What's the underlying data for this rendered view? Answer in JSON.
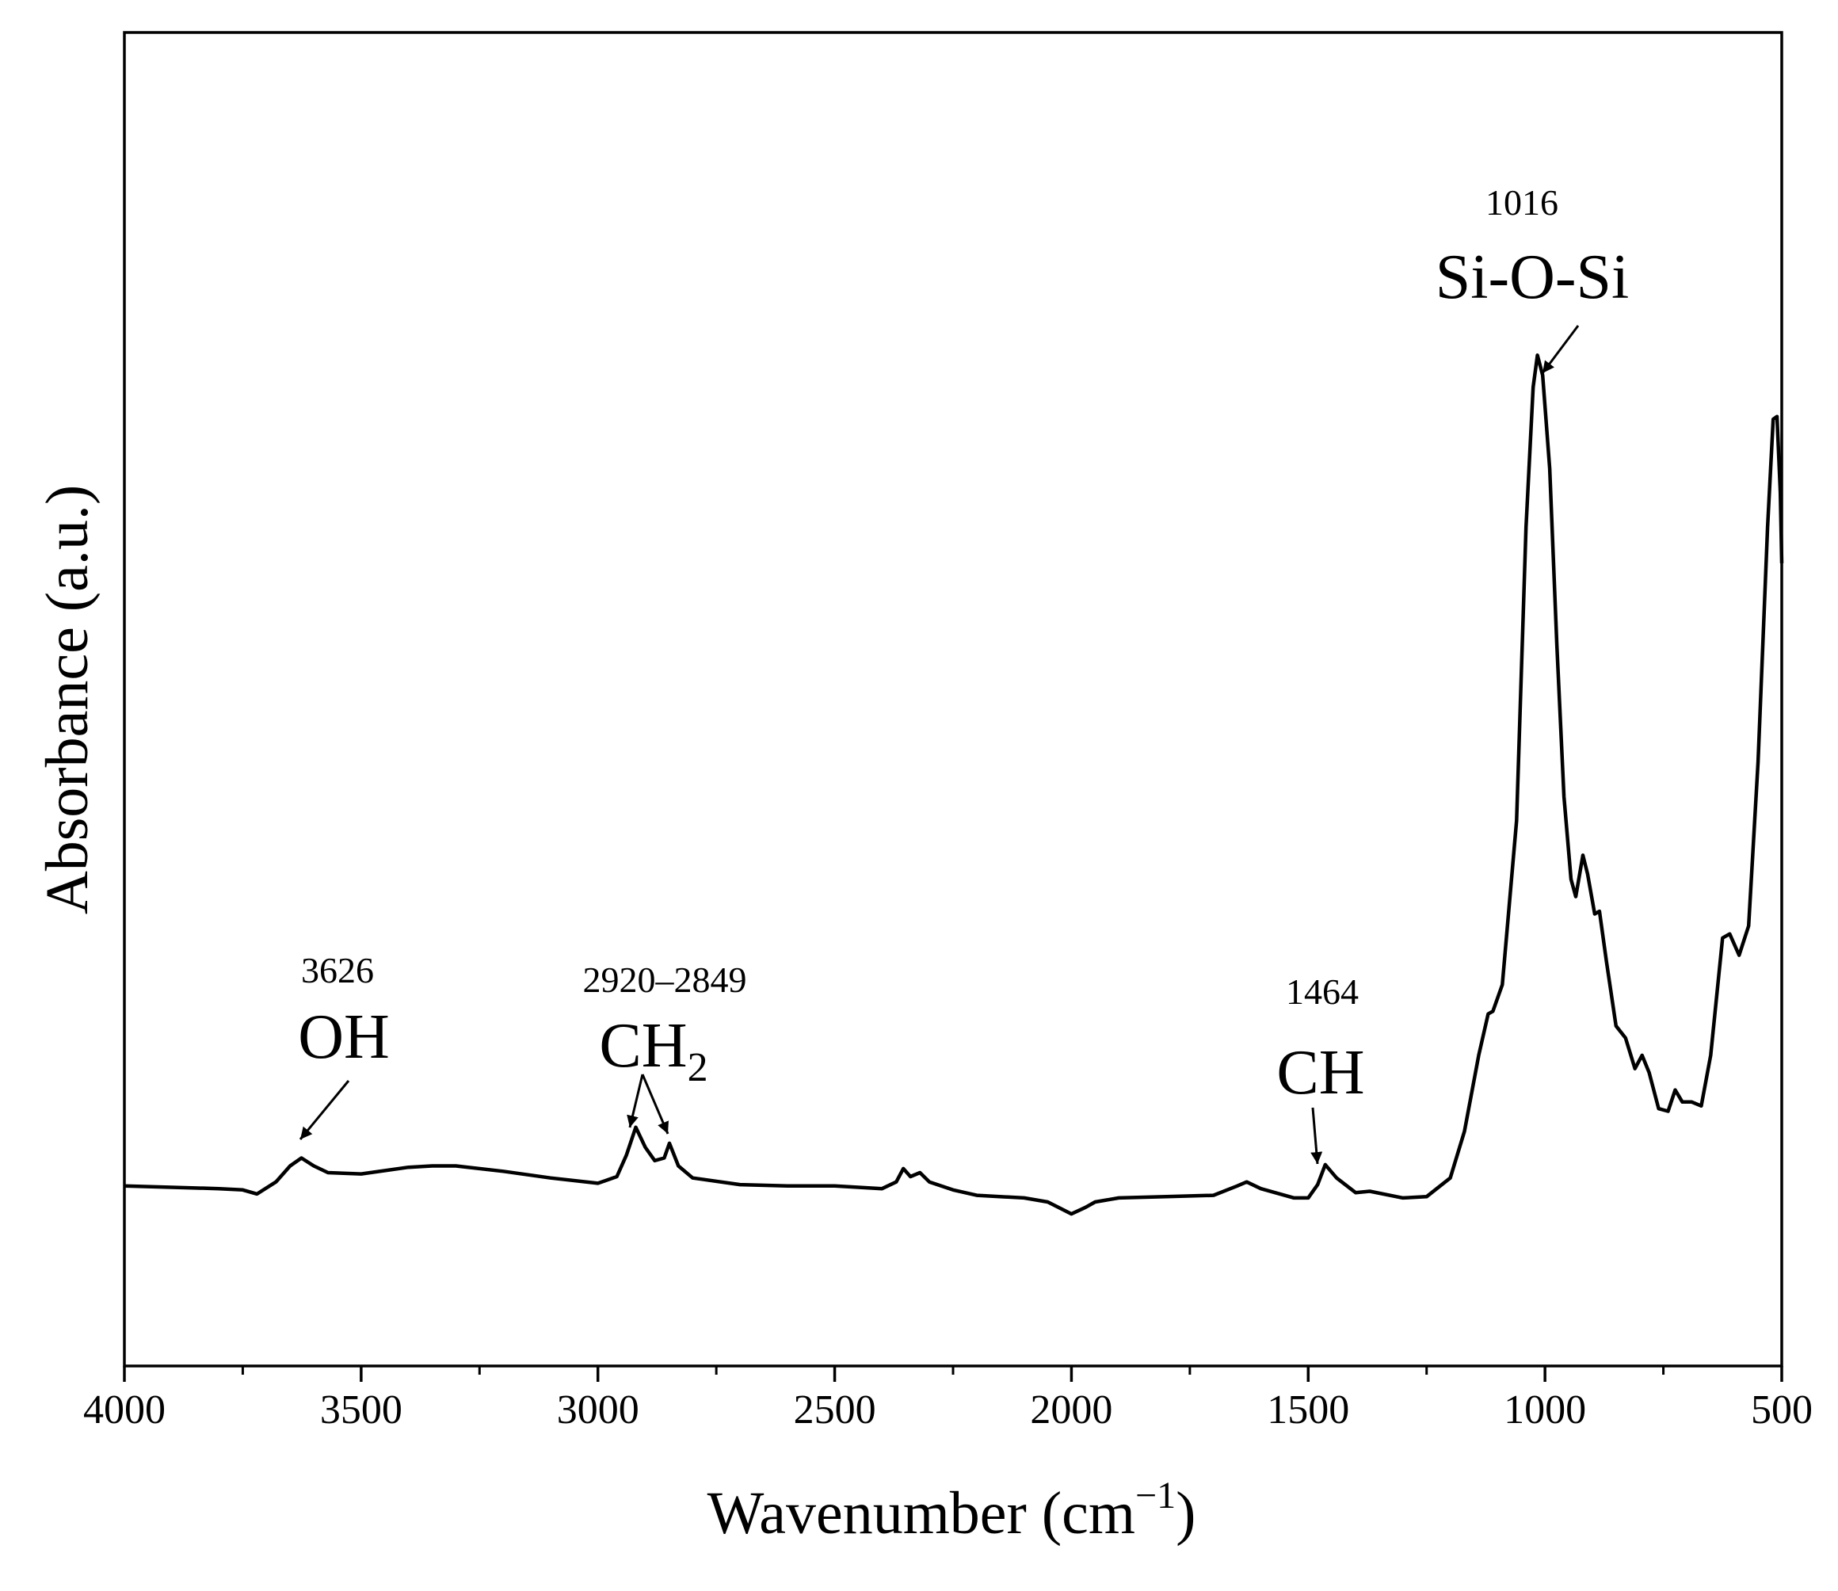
{
  "chart_data": {
    "type": "line",
    "x_label": "Wavenumber (cm",
    "x_label_sup": "−1",
    "x_label_end": ")",
    "y_label": "Absorbance (a.u.)",
    "xlim": [
      4000,
      500
    ],
    "xticks": [
      4000,
      3500,
      3000,
      2500,
      2000,
      1500,
      1000,
      500
    ],
    "xminorticks": [
      3750,
      3250,
      2750,
      2250,
      1750,
      1250,
      750
    ],
    "ylim": [
      0,
      1
    ],
    "color": "#000000",
    "annotations": [
      {
        "number": "3626",
        "label": "OH"
      },
      {
        "number": "2920–2849",
        "label": "CH",
        "label_sub": "2"
      },
      {
        "number": "1464",
        "label": "CH"
      },
      {
        "number": "1016",
        "label": "Si-O-Si"
      }
    ],
    "x": [
      4000,
      3900,
      3800,
      3750,
      3720,
      3680,
      3650,
      3626,
      3600,
      3570,
      3500,
      3400,
      3350,
      3300,
      3200,
      3100,
      3000,
      2960,
      2940,
      2920,
      2900,
      2880,
      2860,
      2849,
      2830,
      2800,
      2700,
      2600,
      2500,
      2400,
      2370,
      2355,
      2340,
      2320,
      2300,
      2250,
      2200,
      2100,
      2050,
      2000,
      1970,
      1950,
      1900,
      1800,
      1700,
      1650,
      1630,
      1600,
      1530,
      1500,
      1480,
      1464,
      1440,
      1400,
      1370,
      1300,
      1250,
      1200,
      1170,
      1140,
      1120,
      1110,
      1090,
      1060,
      1040,
      1025,
      1016,
      1005,
      990,
      975,
      960,
      945,
      935,
      920,
      910,
      895,
      885,
      870,
      850,
      830,
      810,
      795,
      780,
      760,
      740,
      725,
      710,
      690,
      670,
      650,
      625,
      610,
      590,
      570,
      550,
      530,
      518,
      510,
      503,
      500
    ],
    "values": [
      0.135,
      0.134,
      0.133,
      0.132,
      0.129,
      0.138,
      0.15,
      0.156,
      0.15,
      0.145,
      0.144,
      0.149,
      0.15,
      0.15,
      0.146,
      0.141,
      0.137,
      0.142,
      0.158,
      0.179,
      0.164,
      0.154,
      0.156,
      0.167,
      0.15,
      0.141,
      0.136,
      0.135,
      0.135,
      0.133,
      0.138,
      0.148,
      0.142,
      0.145,
      0.138,
      0.132,
      0.128,
      0.126,
      0.123,
      0.114,
      0.119,
      0.123,
      0.126,
      0.127,
      0.128,
      0.135,
      0.138,
      0.133,
      0.126,
      0.126,
      0.136,
      0.151,
      0.141,
      0.13,
      0.131,
      0.126,
      0.127,
      0.141,
      0.176,
      0.233,
      0.264,
      0.266,
      0.286,
      0.409,
      0.629,
      0.734,
      0.758,
      0.743,
      0.673,
      0.541,
      0.427,
      0.365,
      0.352,
      0.383,
      0.369,
      0.339,
      0.341,
      0.303,
      0.255,
      0.246,
      0.223,
      0.233,
      0.22,
      0.193,
      0.191,
      0.207,
      0.198,
      0.198,
      0.195,
      0.233,
      0.321,
      0.324,
      0.308,
      0.33,
      0.453,
      0.629,
      0.71,
      0.712,
      0.655,
      0.602
    ]
  }
}
